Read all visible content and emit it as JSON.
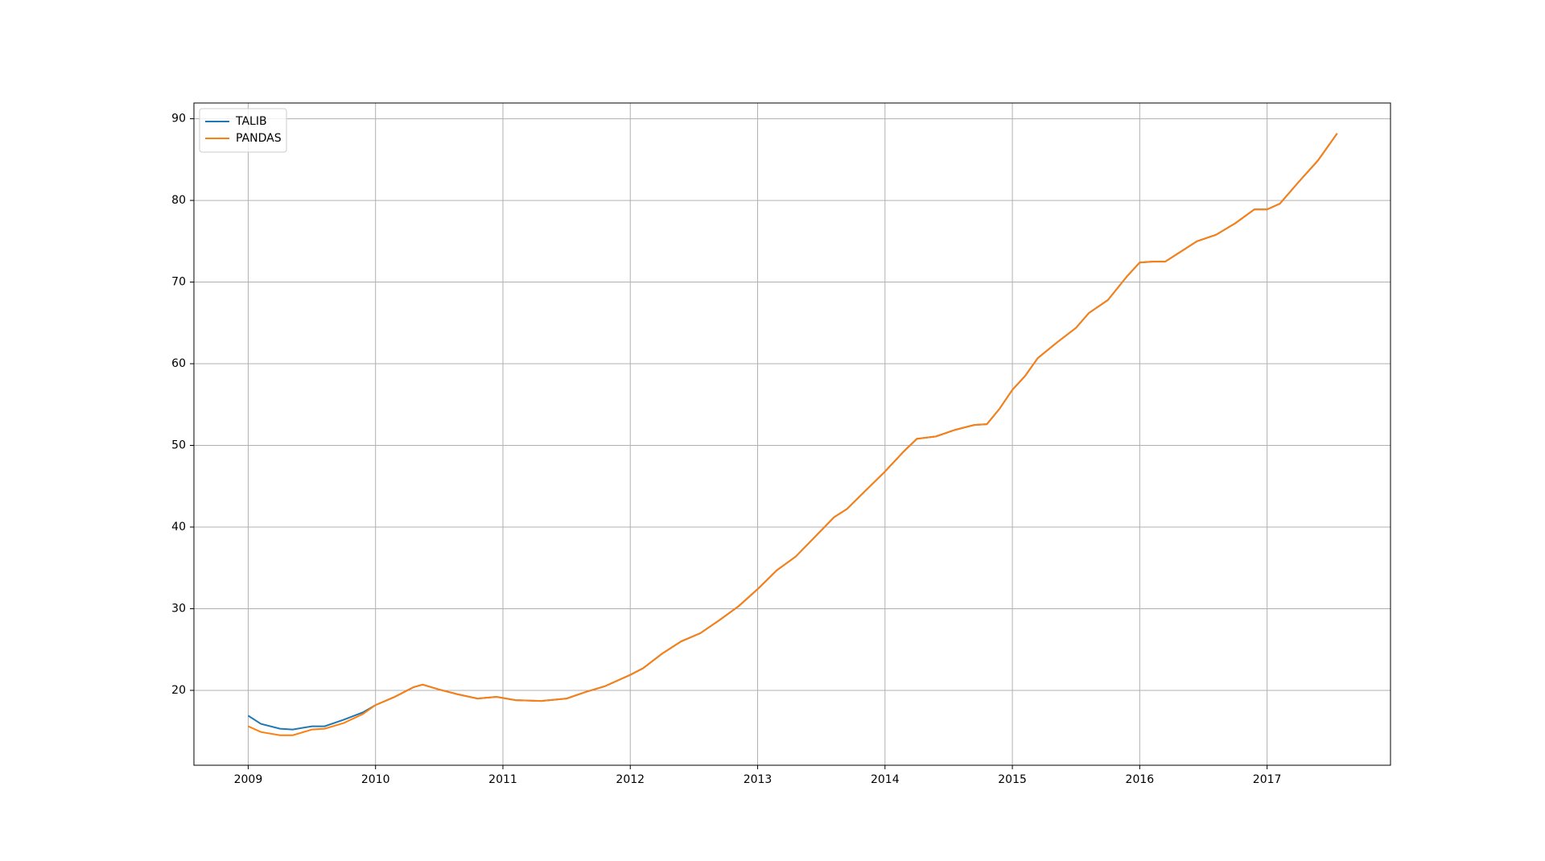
{
  "chart_data": {
    "type": "line",
    "x": [
      2009.0,
      2009.1,
      2009.25,
      2009.35,
      2009.5,
      2009.6,
      2009.75,
      2009.9,
      2010.0,
      2010.15,
      2010.3,
      2010.37,
      2010.5,
      2010.65,
      2010.8,
      2010.95,
      2011.1,
      2011.3,
      2011.5,
      2011.65,
      2011.8,
      2012.0,
      2012.1,
      2012.25,
      2012.4,
      2012.55,
      2012.7,
      2012.85,
      2013.0,
      2013.15,
      2013.3,
      2013.45,
      2013.6,
      2013.7,
      2013.85,
      2014.0,
      2014.15,
      2014.25,
      2014.4,
      2014.55,
      2014.7,
      2014.8,
      2014.9,
      2015.0,
      2015.1,
      2015.2,
      2015.35,
      2015.5,
      2015.6,
      2015.75,
      2015.9,
      2016.0,
      2016.1,
      2016.2,
      2016.3,
      2016.45,
      2016.6,
      2016.75,
      2016.9,
      2017.0,
      2017.1,
      2017.25,
      2017.4,
      2017.55
    ],
    "series": [
      {
        "name": "TALIB",
        "color": "#1f77b4",
        "values": [
          16.9,
          15.9,
          15.3,
          15.2,
          15.6,
          15.6,
          16.4,
          17.3,
          18.2,
          19.2,
          20.4,
          20.7,
          20.1,
          19.5,
          19.0,
          19.2,
          18.8,
          18.7,
          19.0,
          19.8,
          20.5,
          21.9,
          22.7,
          24.5,
          26.0,
          27.0,
          28.6,
          30.3,
          32.4,
          34.7,
          36.4,
          38.8,
          41.2,
          42.2,
          44.5,
          46.8,
          49.3,
          50.8,
          51.1,
          51.9,
          52.5,
          52.6,
          54.5,
          56.8,
          58.5,
          60.7,
          62.6,
          64.4,
          66.2,
          67.8,
          70.7,
          72.4,
          72.5,
          72.5,
          73.5,
          75.0,
          75.8,
          77.2,
          78.9,
          78.9,
          79.6,
          82.3,
          84.9,
          88.2
        ]
      },
      {
        "name": "PANDAS",
        "color": "#ff7f0e",
        "values": [
          15.6,
          14.9,
          14.5,
          14.5,
          15.2,
          15.3,
          16.0,
          17.1,
          18.2,
          19.2,
          20.4,
          20.7,
          20.1,
          19.5,
          19.0,
          19.2,
          18.8,
          18.7,
          19.0,
          19.8,
          20.5,
          21.9,
          22.7,
          24.5,
          26.0,
          27.0,
          28.6,
          30.3,
          32.4,
          34.7,
          36.4,
          38.8,
          41.2,
          42.2,
          44.5,
          46.8,
          49.3,
          50.8,
          51.1,
          51.9,
          52.5,
          52.6,
          54.5,
          56.8,
          58.5,
          60.7,
          62.6,
          64.4,
          66.2,
          67.8,
          70.7,
          72.4,
          72.5,
          72.5,
          73.5,
          75.0,
          75.8,
          77.2,
          78.9,
          78.9,
          79.6,
          82.3,
          84.9,
          88.2
        ]
      }
    ],
    "xlim": [
      2008.574,
      2017.969
    ],
    "xticks": [
      2009,
      2010,
      2011,
      2012,
      2013,
      2014,
      2015,
      2016,
      2017
    ],
    "ylim": [
      10.83,
      91.93
    ],
    "yticks": [
      20,
      30,
      40,
      50,
      60,
      70,
      80,
      90
    ],
    "grid": true,
    "legend": "upper left"
  }
}
